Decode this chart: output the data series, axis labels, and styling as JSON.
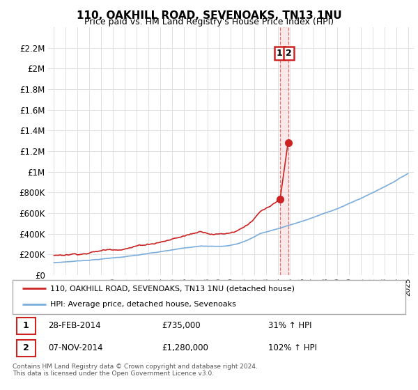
{
  "title": "110, OAKHILL ROAD, SEVENOAKS, TN13 1NU",
  "subtitle": "Price paid vs. HM Land Registry's House Price Index (HPI)",
  "ylim": [
    0,
    2400000
  ],
  "yticks": [
    0,
    200000,
    400000,
    600000,
    800000,
    1000000,
    1200000,
    1400000,
    1600000,
    1800000,
    2000000,
    2200000
  ],
  "ytick_labels": [
    "£0",
    "£200K",
    "£400K",
    "£600K",
    "£800K",
    "£1M",
    "£1.2M",
    "£1.4M",
    "£1.6M",
    "£1.8M",
    "£2M",
    "£2.2M"
  ],
  "hpi_color": "#7aacdc",
  "price_color": "#cc2222",
  "legend_label1": "110, OAKHILL ROAD, SEVENOAKS, TN13 1NU (detached house)",
  "legend_label2": "HPI: Average price, detached house, Sevenoaks",
  "table_row1": [
    "1",
    "28-FEB-2014",
    "£735,000",
    "31% ↑ HPI"
  ],
  "table_row2": [
    "2",
    "07-NOV-2014",
    "£1,280,000",
    "102% ↑ HPI"
  ],
  "footer": "Contains HM Land Registry data © Crown copyright and database right 2024.\nThis data is licensed under the Open Government Licence v3.0.",
  "grid_color": "#e0e0e0",
  "marker1_year": 2014.16,
  "marker2_year": 2014.85,
  "marker1_price": 735000,
  "marker2_price": 1280000
}
